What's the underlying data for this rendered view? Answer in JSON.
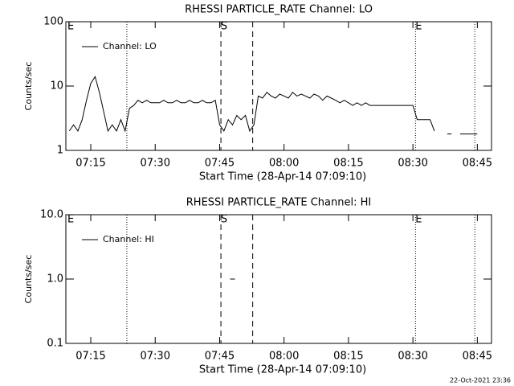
{
  "chart_data": [
    {
      "type": "line",
      "title": "RHESSI PARTICLE_RATE Channel: LO",
      "xlabel": "Start Time (28-Apr-14 07:09:10)",
      "ylabel": "Counts/sec",
      "log_y": true,
      "legend": "upper left",
      "xlim": [
        429.2,
        528.3
      ],
      "ylim": [
        1,
        100
      ],
      "yticks": [
        1,
        10,
        100
      ],
      "xticks": [
        {
          "value": 435,
          "label": "07:15"
        },
        {
          "value": 450,
          "label": "07:30"
        },
        {
          "value": 465,
          "label": "07:45"
        },
        {
          "value": 480,
          "label": "08:00"
        },
        {
          "value": 495,
          "label": "08:15"
        },
        {
          "value": 510,
          "label": "08:30"
        },
        {
          "value": 525,
          "label": "08:45"
        }
      ],
      "markers": [
        {
          "x": 429.6,
          "style": "none",
          "label": "E"
        },
        {
          "x": 443.4,
          "style": "dotted"
        },
        {
          "x": 465.3,
          "style": "dashed",
          "label": "S"
        },
        {
          "x": 472.7,
          "style": "dashed"
        },
        {
          "x": 510.6,
          "style": "dotted",
          "label": "E"
        },
        {
          "x": 524.4,
          "style": "dotted"
        }
      ],
      "x": [
        430,
        431,
        432,
        433,
        434,
        435,
        436,
        437,
        438,
        439,
        440,
        441,
        442,
        443,
        444,
        445,
        446,
        447,
        448,
        449,
        450,
        451,
        452,
        453,
        454,
        455,
        456,
        457,
        458,
        459,
        460,
        461,
        462,
        463,
        464,
        465,
        466,
        467,
        468,
        469,
        470,
        471,
        472,
        473,
        474,
        475,
        476,
        477,
        478,
        479,
        480,
        481,
        482,
        483,
        484,
        485,
        486,
        487,
        488,
        489,
        490,
        491,
        492,
        493,
        494,
        495,
        496,
        497,
        498,
        499,
        500,
        501,
        502,
        503,
        504,
        505,
        506,
        507,
        508,
        509,
        510,
        511,
        512,
        513,
        514,
        515,
        516,
        517,
        518,
        519,
        520,
        521,
        522,
        523,
        524,
        525
      ],
      "series": [
        {
          "name": "Channel: LO",
          "color": "#000000",
          "values": [
            2,
            2.5,
            2,
            3,
            6,
            11,
            14,
            8,
            4,
            2,
            2.5,
            2,
            3,
            2,
            4.5,
            5,
            6,
            5.5,
            6,
            5.5,
            5.5,
            5.5,
            6,
            5.5,
            5.5,
            6,
            5.5,
            5.5,
            6,
            5.5,
            5.5,
            6,
            5.5,
            5.5,
            6,
            2.5,
            2,
            3,
            2.5,
            3.5,
            3,
            3.5,
            2,
            2.5,
            7,
            6.5,
            8,
            7,
            6.5,
            7.5,
            7,
            6.5,
            8,
            7,
            7.5,
            7,
            6.5,
            7.5,
            7,
            6,
            7,
            6.5,
            6,
            5.5,
            6,
            5.5,
            5,
            5.5,
            5,
            5.5,
            5,
            5,
            5,
            5,
            5,
            5,
            5,
            5,
            5,
            5,
            5,
            3,
            3,
            3,
            3,
            2,
            null,
            null,
            1.8,
            1.8,
            null,
            1.8,
            1.8,
            1.8,
            1.8,
            1.8
          ]
        }
      ]
    },
    {
      "type": "line",
      "title": "RHESSI PARTICLE_RATE Channel: HI",
      "xlabel": "Start Time (28-Apr-14 07:09:10)",
      "ylabel": "Counts/sec",
      "log_y": true,
      "legend": "upper left",
      "xlim": [
        429.2,
        528.3
      ],
      "ylim": [
        0.1,
        10
      ],
      "yticks": [
        0.1,
        {
          "value": 1,
          "label": "1.0"
        },
        {
          "value": 10,
          "label": "10.0"
        }
      ],
      "xticks": [
        {
          "value": 435,
          "label": "07:15"
        },
        {
          "value": 450,
          "label": "07:30"
        },
        {
          "value": 465,
          "label": "07:45"
        },
        {
          "value": 480,
          "label": "08:00"
        },
        {
          "value": 495,
          "label": "08:15"
        },
        {
          "value": 510,
          "label": "08:30"
        },
        {
          "value": 525,
          "label": "08:45"
        }
      ],
      "markers": [
        {
          "x": 429.6,
          "style": "none",
          "label": "E"
        },
        {
          "x": 443.4,
          "style": "dotted"
        },
        {
          "x": 465.3,
          "style": "dashed",
          "label": "S"
        },
        {
          "x": 472.7,
          "style": "dashed"
        },
        {
          "x": 510.6,
          "style": "dotted",
          "label": "E"
        },
        {
          "x": 524.4,
          "style": "dotted"
        }
      ],
      "x": [
        468
      ],
      "series": [
        {
          "name": "Channel: HI",
          "color": "#000000",
          "values": [
            1
          ]
        }
      ]
    }
  ],
  "footer": "22-Oct-2021 23:36"
}
